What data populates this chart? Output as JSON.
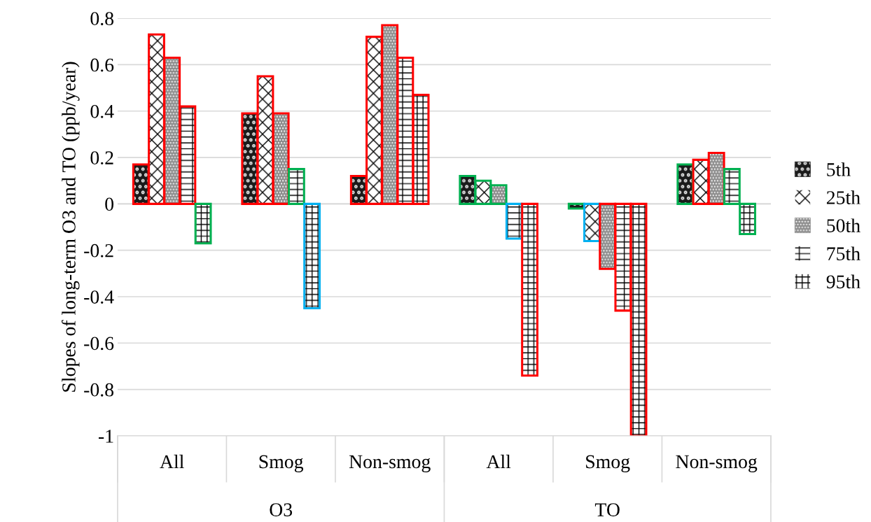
{
  "chart_data": {
    "type": "bar",
    "ylabel": "Slopes of long-term O3 and TO (ppb/year)",
    "categories": [
      "All",
      "Smog",
      "Non-smog",
      "All",
      "Smog",
      "Non-smog"
    ],
    "annotations": [
      "O3",
      "TO"
    ],
    "series": [
      {
        "name": "5th",
        "color": "#1a1a1a",
        "colors": [
          "#ff0000",
          "#ff0000",
          "#ff0000",
          "#00b050",
          "#00b050",
          "#00b050"
        ],
        "values": [
          0.17,
          0.39,
          0.12,
          0.12,
          -0.02,
          0.17
        ]
      },
      {
        "name": "25th",
        "color": "#ffffff",
        "colors": [
          "#ff0000",
          "#ff0000",
          "#ff0000",
          "#00b050",
          "#00b0f0",
          "#ff0000"
        ],
        "values": [
          0.73,
          0.55,
          0.72,
          0.1,
          -0.16,
          0.19
        ]
      },
      {
        "name": "50th",
        "color": "#8c8c8c",
        "colors": [
          "#ff0000",
          "#ff0000",
          "#ff0000",
          "#00b050",
          "#ff0000",
          "#ff0000"
        ],
        "values": [
          0.63,
          0.39,
          0.77,
          0.08,
          -0.28,
          0.22
        ]
      },
      {
        "name": "75th",
        "color": "#ffffff",
        "colors": [
          "#ff0000",
          "#00b050",
          "#ff0000",
          "#00b0f0",
          "#ff0000",
          "#00b050"
        ],
        "values": [
          0.42,
          0.15,
          0.63,
          -0.15,
          -0.46,
          0.15
        ]
      },
      {
        "name": "95th",
        "color": "#ffffff",
        "colors": [
          "#00b050",
          "#00b0f0",
          "#ff0000",
          "#ff0000",
          "#ff0000",
          "#00b050"
        ],
        "values": [
          -0.17,
          -0.45,
          0.47,
          -0.74,
          -1.0,
          -0.13
        ]
      }
    ],
    "ylim": [
      -1,
      0.8
    ],
    "yticks": [
      -1,
      -0.8,
      -0.6,
      -0.4,
      -0.2,
      0,
      0.2,
      0.4,
      0.6,
      0.8
    ],
    "grid": "y",
    "legend": "right"
  }
}
